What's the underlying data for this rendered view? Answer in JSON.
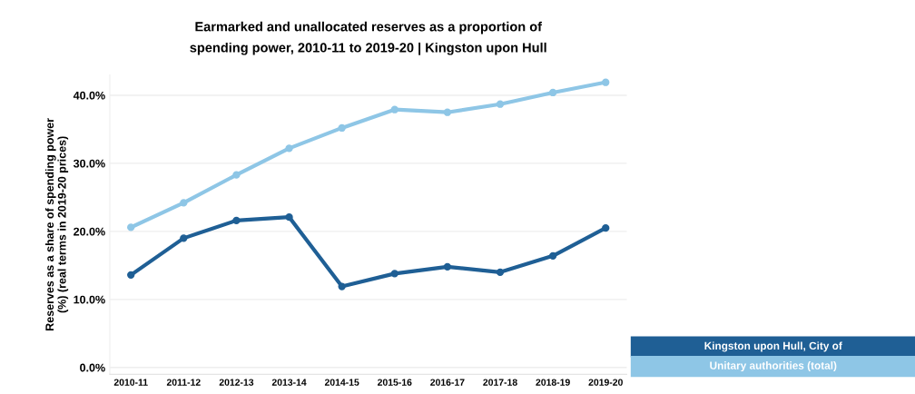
{
  "chart_data": {
    "type": "line",
    "title": "Earmarked and unallocated reserves as a proportion of\nspending power, 2010-11 to 2019-20 | Kingston upon Hull",
    "ylabel": "Reserves as a share of spending power\n(%) (real terms in 2019-20 prices)",
    "categories": [
      "2010-11",
      "2011-12",
      "2012-13",
      "2013-14",
      "2014-15",
      "2015-16",
      "2016-17",
      "2017-18",
      "2018-19",
      "2019-20"
    ],
    "series": [
      {
        "name": "Kingston upon Hull, City of",
        "color": "#1f5f95",
        "values": [
          13.6,
          19.0,
          21.6,
          22.1,
          11.9,
          13.8,
          14.8,
          14.0,
          16.4,
          20.5
        ]
      },
      {
        "name": "Unitary authorities (total)",
        "color": "#8ec6e6",
        "values": [
          20.6,
          24.2,
          28.3,
          32.2,
          35.2,
          37.9,
          37.5,
          38.7,
          40.4,
          41.9
        ]
      }
    ],
    "ylim": [
      -1,
      43
    ],
    "yticks": [
      {
        "value": 0,
        "label": "0.0%"
      },
      {
        "value": 10,
        "label": "10.0%"
      },
      {
        "value": 20,
        "label": "20.0%"
      },
      {
        "value": 30,
        "label": "30.0%"
      },
      {
        "value": 40,
        "label": "40.0%"
      }
    ],
    "grid": "y",
    "legend": "bottom right",
    "marker": "circle",
    "line_style": "solid"
  }
}
